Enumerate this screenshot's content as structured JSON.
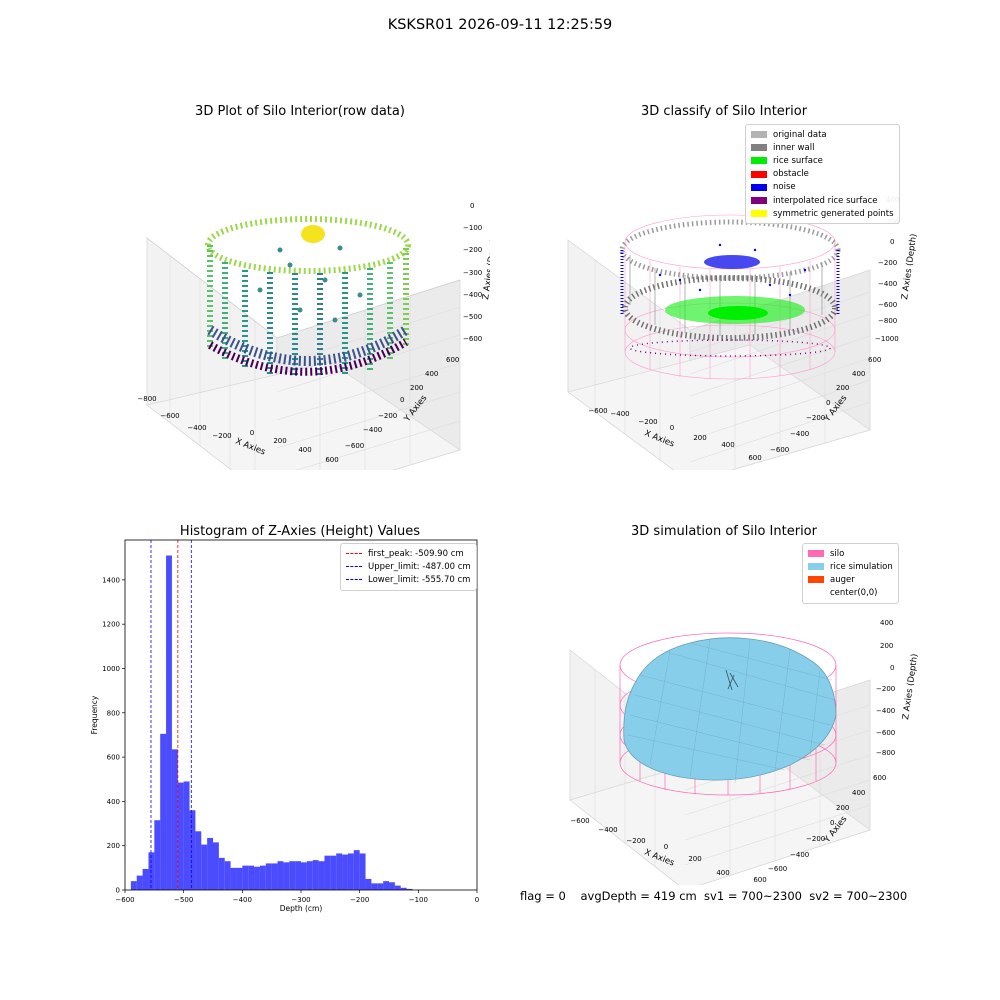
{
  "suptitle": "KSKSR01 2026-09-11 12:25:59",
  "panels": {
    "raw": {
      "title": "3D Plot of Silo Interior(row data)",
      "xlabel": "X Axies",
      "ylabel": "Y Axies",
      "zlabel": "Z Axies (Depth)",
      "xticks": [
        "−800",
        "−600",
        "−400",
        "−200",
        "0",
        "200",
        "400",
        "600"
      ],
      "yticks": [
        "−600",
        "−400",
        "−200",
        "0",
        "200",
        "400",
        "600"
      ],
      "zticks": [
        "0",
        "−100",
        "−200",
        "−300",
        "−400",
        "−500",
        "−600"
      ]
    },
    "classify": {
      "title": "3D classify of Silo Interior",
      "xlabel": "X Axies",
      "ylabel": "Y Axies",
      "zlabel": "Z Axies (Depth)",
      "xticks": [
        "−600",
        "−400",
        "−200",
        "0",
        "200",
        "400",
        "600"
      ],
      "yticks": [
        "−600",
        "−400",
        "−200",
        "0",
        "200",
        "400",
        "600"
      ],
      "zticks": [
        "400",
        "200",
        "0",
        "−200",
        "−400",
        "−600",
        "−800",
        "−1000"
      ],
      "legend": [
        {
          "label": "original data",
          "color": "#b3b3b3"
        },
        {
          "label": "inner wall",
          "color": "#808080"
        },
        {
          "label": "rice surface",
          "color": "#00ee00"
        },
        {
          "label": "obstacle",
          "color": "#ff0000"
        },
        {
          "label": "noise",
          "color": "#0000ee"
        },
        {
          "label": "interpolated rice surface",
          "color": "#800080"
        },
        {
          "label": "symmetric generated points",
          "color": "#ffff00"
        }
      ]
    },
    "simulation": {
      "title": "3D simulation of Silo Interior",
      "xlabel": "X Axies",
      "ylabel": "Y Axies",
      "zlabel": "Z Axies (Depth)",
      "xticks": [
        "−600",
        "−400",
        "−200",
        "0",
        "200",
        "400",
        "600"
      ],
      "yticks": [
        "−600",
        "−400",
        "−200",
        "0",
        "200",
        "400",
        "600"
      ],
      "zticks": [
        "400",
        "200",
        "0",
        "−200",
        "−400",
        "−600",
        "−800"
      ],
      "legend": [
        {
          "label": "silo",
          "color": "#ff69b4"
        },
        {
          "label": "rice simulation",
          "color": "#87ceeb"
        },
        {
          "label": "auger",
          "color": "#ff4500"
        },
        {
          "label": "center(0,0)",
          "color": "#ffffff"
        }
      ],
      "footer": "flag = 0    avgDepth = 419 cm  sv1 = 700~2300  sv2 = 700~2300"
    }
  },
  "chart_data": [
    {
      "type": "bar",
      "title": "Histogram of Z-Axies (Height) Values",
      "xlabel": "Depth (cm)",
      "ylabel": "Frequency",
      "xlim": [
        -600,
        0
      ],
      "ylim": [
        0,
        1580
      ],
      "xticks": [
        "−600",
        "−500",
        "−400",
        "−300",
        "−200",
        "−100",
        "0"
      ],
      "yticks": [
        "0",
        "200",
        "400",
        "600",
        "800",
        "1000",
        "1200",
        "1400"
      ],
      "bin_width": 10,
      "bin_start": -590,
      "values": [
        40,
        65,
        95,
        170,
        315,
        705,
        1510,
        635,
        485,
        490,
        360,
        265,
        205,
        235,
        215,
        145,
        130,
        100,
        100,
        110,
        110,
        105,
        110,
        120,
        120,
        130,
        125,
        130,
        130,
        125,
        130,
        135,
        130,
        155,
        155,
        165,
        160,
        165,
        180,
        165,
        50,
        30,
        30,
        40,
        35,
        20,
        10,
        5
      ],
      "bar_color": "#0000ff",
      "lines": [
        {
          "label": "first_peak: -509.90 cm",
          "x": -509.9,
          "color": "#ff0000"
        },
        {
          "label": "Upper_limit: -487.00 cm",
          "x": -487.0,
          "color": "#0000ff"
        },
        {
          "label": "Lower_limit: -555.70 cm",
          "x": -555.7,
          "color": "#0000ff"
        }
      ]
    }
  ]
}
